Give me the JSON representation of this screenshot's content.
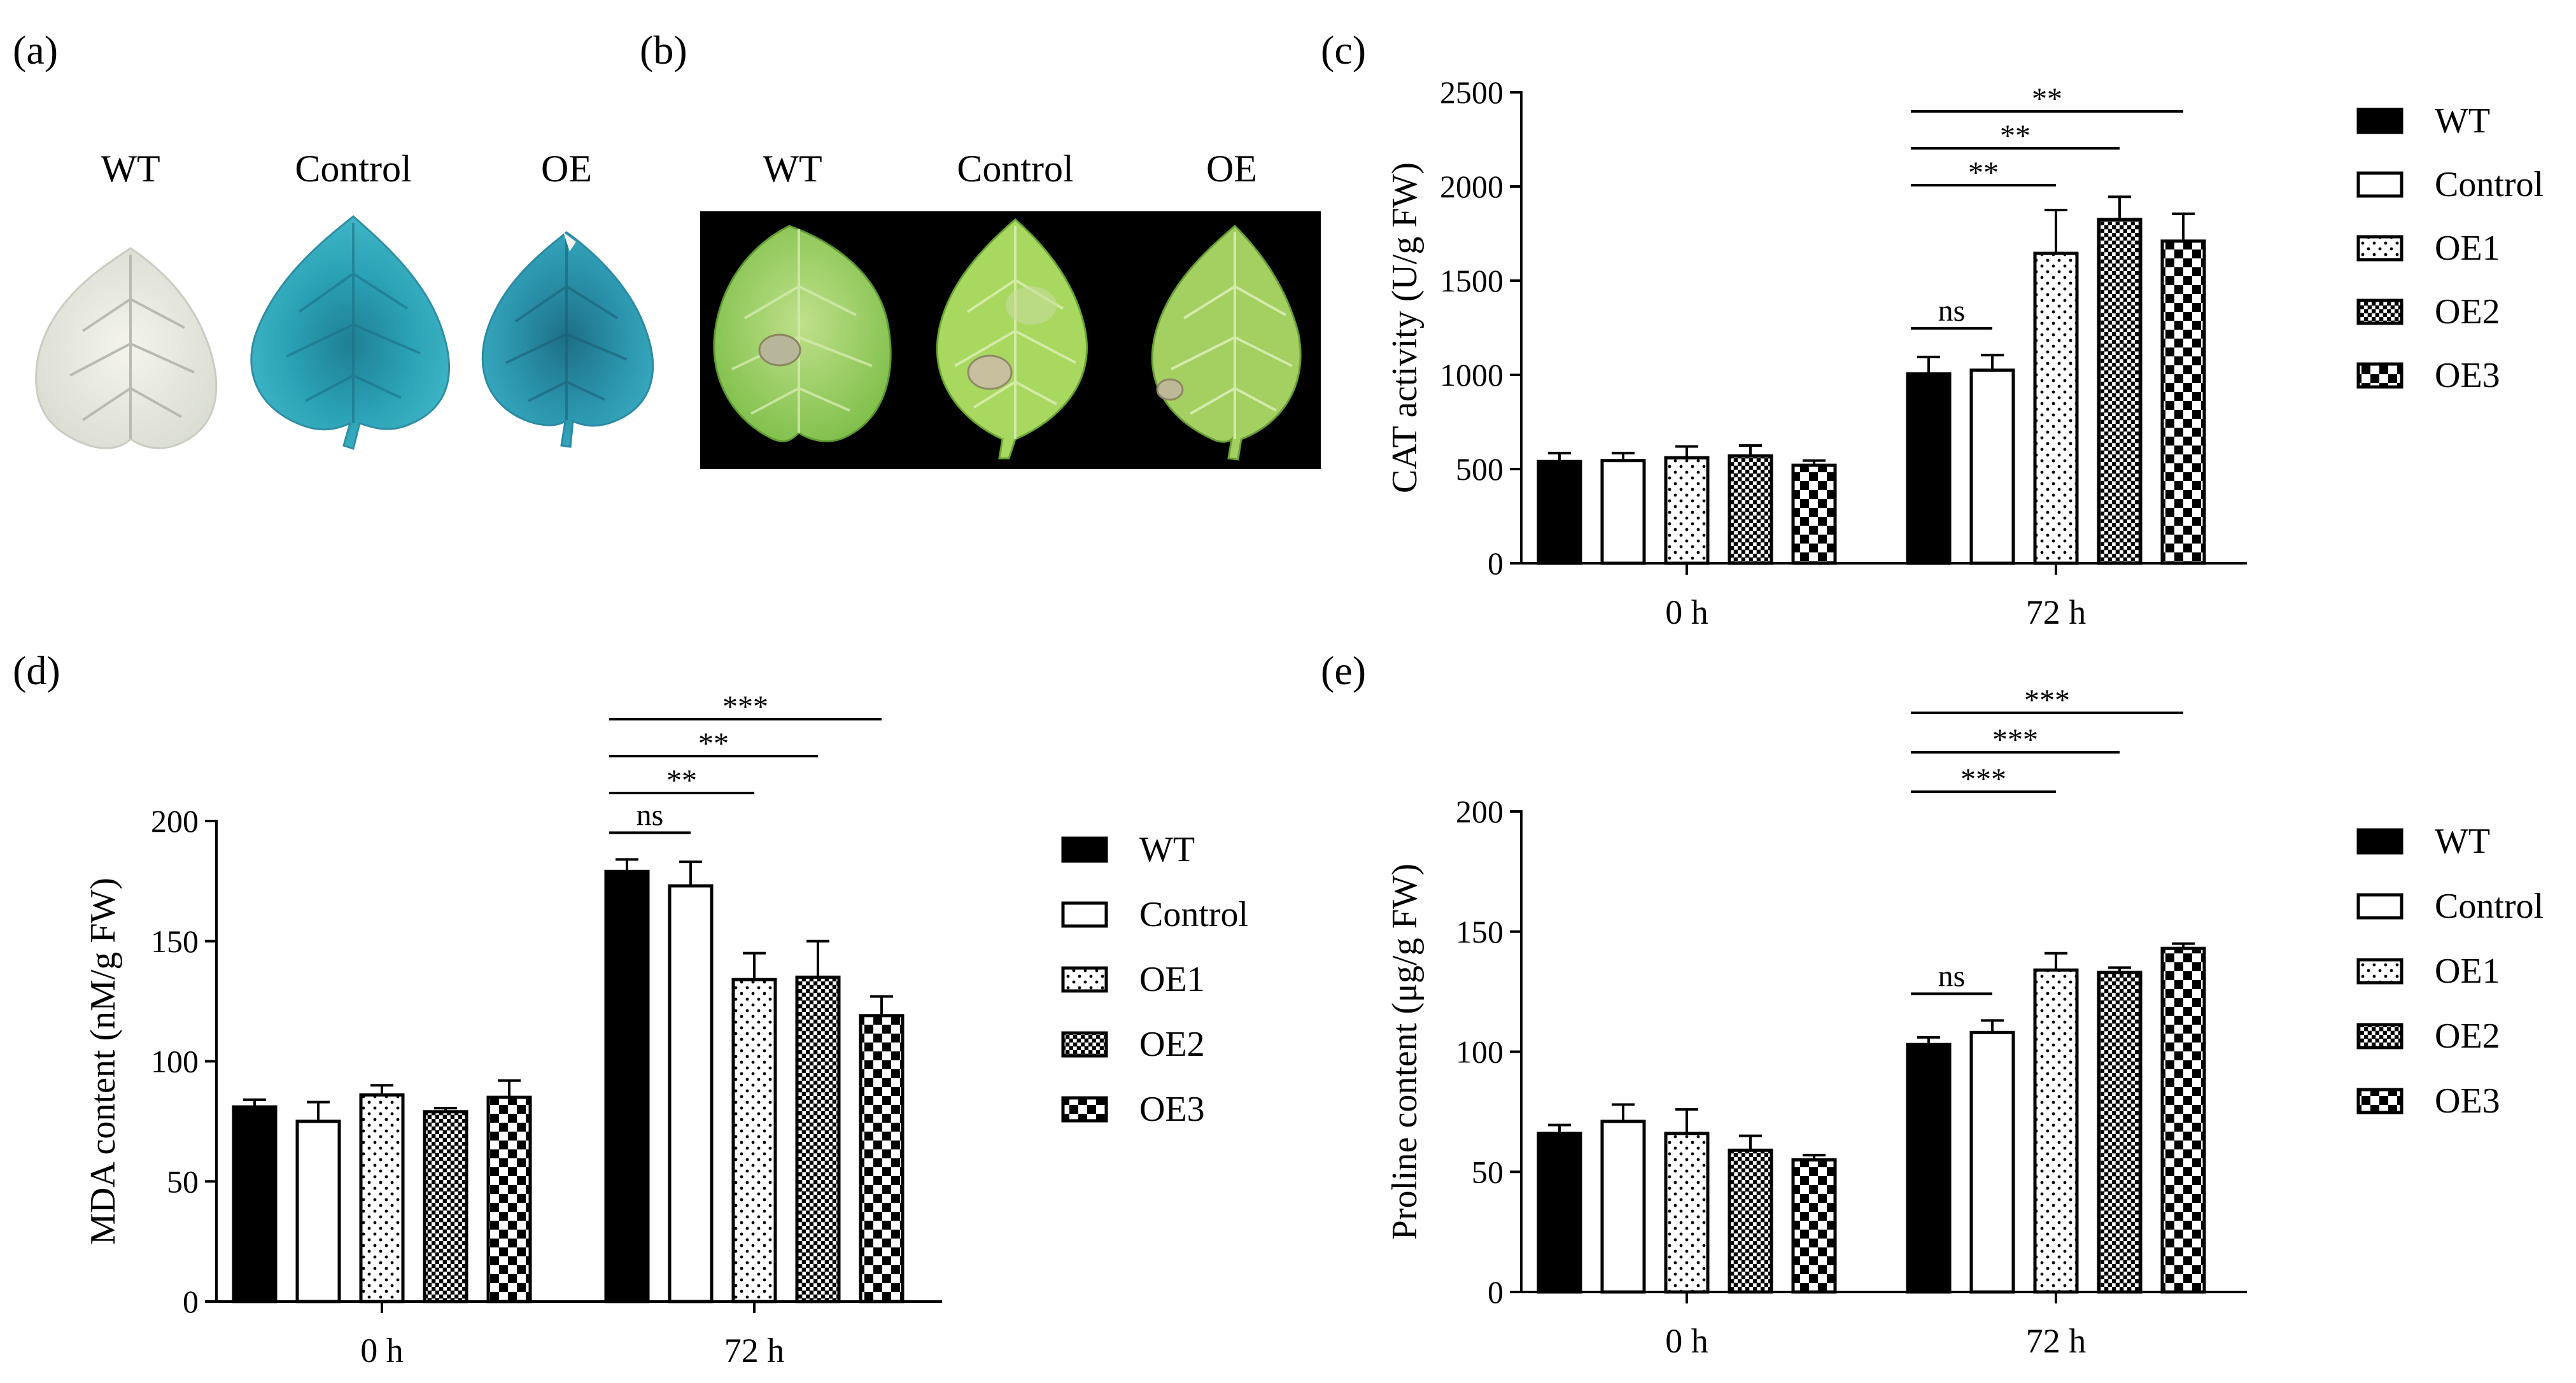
{
  "panels": {
    "a": {
      "label": "(a)",
      "leaves": [
        "WT",
        "Control",
        "OE"
      ]
    },
    "b": {
      "label": "(b)",
      "leaves": [
        "WT",
        "Control",
        "OE"
      ]
    }
  },
  "legend_entries": [
    "WT",
    "Control",
    "OE1",
    "OE2",
    "OE3"
  ],
  "colors": {
    "ink": "#000000",
    "gus_blue": "#2aa1b5",
    "leaf_green": "#9fcf63",
    "photo_bg": "#000000"
  },
  "chart_data": [
    {
      "panel": "(c)",
      "type": "bar",
      "ylabel": "CAT activity (U/g FW)",
      "ylim": [
        0,
        2500
      ],
      "yticks": [
        0,
        500,
        1000,
        1500,
        2000,
        2500
      ],
      "categories": [
        "0 h",
        "72 h"
      ],
      "series": [
        {
          "name": "WT",
          "values": [
            540,
            1005
          ],
          "errors": [
            45,
            90
          ]
        },
        {
          "name": "Control",
          "values": [
            545,
            1025
          ],
          "errors": [
            40,
            80
          ]
        },
        {
          "name": "OE1",
          "values": [
            560,
            1645
          ],
          "errors": [
            60,
            230
          ]
        },
        {
          "name": "OE2",
          "values": [
            570,
            1825
          ],
          "errors": [
            55,
            120
          ]
        },
        {
          "name": "OE3",
          "values": [
            520,
            1710
          ],
          "errors": [
            25,
            145
          ]
        }
      ],
      "significance": [
        {
          "from": 0,
          "to": 1,
          "label": "ns"
        },
        {
          "from": 0,
          "to": 2,
          "label": "**"
        },
        {
          "from": 0,
          "to": 3,
          "label": "**"
        },
        {
          "from": 0,
          "to": 4,
          "label": "**"
        }
      ]
    },
    {
      "panel": "(d)",
      "type": "bar",
      "ylabel": "MDA content (nM/g FW)",
      "ylim": [
        0,
        200
      ],
      "yticks": [
        0,
        50,
        100,
        150,
        200
      ],
      "categories": [
        "0 h",
        "72 h"
      ],
      "series": [
        {
          "name": "WT",
          "values": [
            81,
            179
          ],
          "errors": [
            3,
            5
          ]
        },
        {
          "name": "Control",
          "values": [
            75,
            173
          ],
          "errors": [
            8,
            10
          ]
        },
        {
          "name": "OE1",
          "values": [
            86,
            134
          ],
          "errors": [
            4,
            11
          ]
        },
        {
          "name": "OE2",
          "values": [
            79,
            135
          ],
          "errors": [
            1.5,
            15
          ]
        },
        {
          "name": "OE3",
          "values": [
            85,
            119
          ],
          "errors": [
            7,
            8
          ]
        }
      ],
      "significance": [
        {
          "from": 0,
          "to": 1,
          "label": "ns"
        },
        {
          "from": 0,
          "to": 2,
          "label": "**"
        },
        {
          "from": 0,
          "to": 3,
          "label": "**"
        },
        {
          "from": 0,
          "to": 4,
          "label": "***"
        }
      ]
    },
    {
      "panel": "(e)",
      "type": "bar",
      "ylabel": "Proline content (μg/g FW)",
      "ylim": [
        0,
        200
      ],
      "yticks": [
        0,
        50,
        100,
        150,
        200
      ],
      "categories": [
        "0 h",
        "72 h"
      ],
      "series": [
        {
          "name": "WT",
          "values": [
            66,
            103
          ],
          "errors": [
            3.5,
            3
          ]
        },
        {
          "name": "Control",
          "values": [
            71,
            108
          ],
          "errors": [
            7,
            5
          ]
        },
        {
          "name": "OE1",
          "values": [
            66,
            134
          ],
          "errors": [
            10,
            7
          ]
        },
        {
          "name": "OE2",
          "values": [
            59,
            133
          ],
          "errors": [
            6,
            2
          ]
        },
        {
          "name": "OE3",
          "values": [
            55,
            143
          ],
          "errors": [
            2,
            2
          ]
        }
      ],
      "significance": [
        {
          "from": 0,
          "to": 1,
          "label": "ns"
        },
        {
          "from": 0,
          "to": 2,
          "label": "***"
        },
        {
          "from": 0,
          "to": 3,
          "label": "***"
        },
        {
          "from": 0,
          "to": 4,
          "label": "***"
        }
      ]
    }
  ]
}
